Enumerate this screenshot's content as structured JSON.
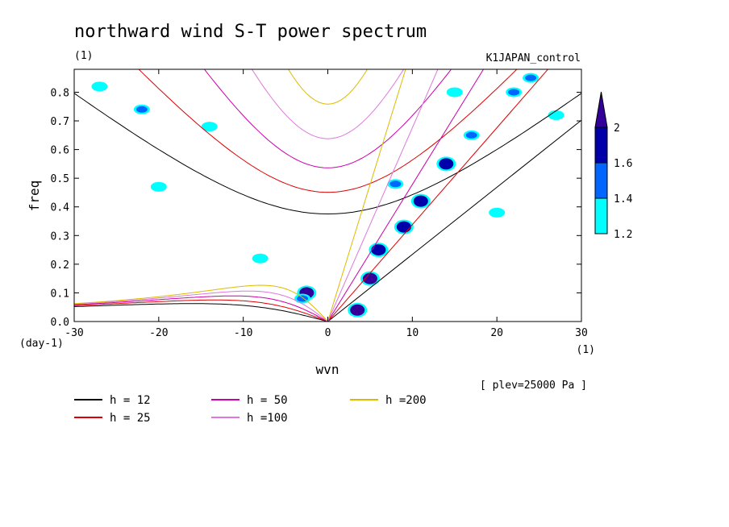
{
  "chart_data": {
    "type": "contour",
    "title": "northward wind S-T power spectrum",
    "units": "(1)",
    "experiment": "K1JAPAN_control",
    "xlabel": "wvn",
    "x_units": "(1)",
    "ylabel": "freq",
    "y_units": "(day-1)",
    "xlim": [
      -30,
      30
    ],
    "ylim": [
      0,
      0.88
    ],
    "x_ticks": [
      -30,
      -20,
      -10,
      0,
      10,
      20,
      30
    ],
    "x_tick_labels": [
      "-30",
      "-20",
      "-10",
      "0",
      "10",
      "20",
      "30"
    ],
    "y_ticks": [
      0,
      0.1,
      0.2,
      0.3,
      0.4,
      0.5,
      0.6,
      0.7,
      0.8
    ],
    "y_tick_labels": [
      "0.0",
      "0.1",
      "0.2",
      "0.3",
      "0.4",
      "0.5",
      "0.6",
      "0.7",
      "0.8"
    ],
    "plev_note": "[ plev=25000 Pa ]",
    "colorbar": {
      "levels": [
        1.2,
        1.4,
        1.6,
        2
      ],
      "labels": [
        "1.2",
        "1.4",
        "1.6",
        "2"
      ],
      "colors": [
        "#00ffff",
        "#0066ff",
        "#0000aa",
        "#330099"
      ]
    },
    "dispersion_curves": [
      {
        "name": "h = 12",
        "h": 12,
        "color": "#000000"
      },
      {
        "name": "h = 25",
        "h": 25,
        "color": "#dd0000"
      },
      {
        "name": "h = 50",
        "h": 50,
        "color": "#cc00aa"
      },
      {
        "name": "h =100",
        "h": 100,
        "color": "#dd77dd"
      },
      {
        "name": "h =200",
        "h": 200,
        "color": "#ddbb00"
      }
    ],
    "contour_regions": [
      {
        "x": -2.5,
        "y": 0.1,
        "level": 2
      },
      {
        "x": 3.5,
        "y": 0.04,
        "level": 2
      },
      {
        "x": 5.0,
        "y": 0.15,
        "level": 2
      },
      {
        "x": 6.0,
        "y": 0.25,
        "level": 1.6
      },
      {
        "x": 9.0,
        "y": 0.33,
        "level": 1.6
      },
      {
        "x": 11.0,
        "y": 0.42,
        "level": 1.6
      },
      {
        "x": 14.0,
        "y": 0.55,
        "level": 1.6
      },
      {
        "x": 17.0,
        "y": 0.65,
        "level": 1.4
      },
      {
        "x": 22.0,
        "y": 0.8,
        "level": 1.4
      },
      {
        "x": 24.0,
        "y": 0.85,
        "level": 1.4
      },
      {
        "x": -3.0,
        "y": 0.08,
        "level": 1.4
      },
      {
        "x": -22.0,
        "y": 0.74,
        "level": 1.4
      },
      {
        "x": 8.0,
        "y": 0.48,
        "level": 1.4
      },
      {
        "x": -20.0,
        "y": 0.47,
        "level": 1.2
      },
      {
        "x": -27.0,
        "y": 0.82,
        "level": 1.2
      },
      {
        "x": -14.0,
        "y": 0.68,
        "level": 1.2
      },
      {
        "x": 15.0,
        "y": 0.8,
        "level": 1.2
      },
      {
        "x": 20.0,
        "y": 0.38,
        "level": 1.2
      },
      {
        "x": -8.0,
        "y": 0.22,
        "level": 1.2
      },
      {
        "x": 27.0,
        "y": 0.72,
        "level": 1.2
      }
    ]
  }
}
